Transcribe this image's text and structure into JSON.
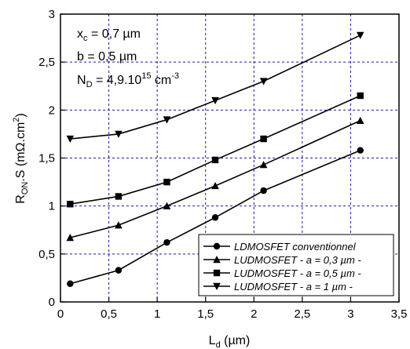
{
  "chart_data": {
    "type": "line",
    "xlabel_main": "L",
    "xlabel_sub": "d",
    "xlabel_rest": " (µm)",
    "ylabel_main": "R",
    "ylabel_sub": "ON",
    "ylabel_rest": ".S (mΩ.cm",
    "ylabel_sup": "2",
    "ylabel_close": ")",
    "xlim": [
      0,
      3.5
    ],
    "ylim": [
      0,
      3
    ],
    "xticks": [
      0,
      0.5,
      1,
      1.5,
      2,
      2.5,
      3,
      3.5
    ],
    "xtick_labels": [
      "0",
      "0,5",
      "1",
      "1,5",
      "2",
      "2,5",
      "3",
      "3,5"
    ],
    "yticks": [
      0,
      0.5,
      1,
      1.5,
      2,
      2.5,
      3
    ],
    "ytick_labels": [
      "0",
      "0,5",
      "1",
      "1,5",
      "2",
      "2,5",
      "3"
    ],
    "grid": true,
    "legend_position": "bottom-right",
    "annotations": {
      "xc_main": "x",
      "xc_sub": "c",
      "xc_rest": " = 0,7 µm",
      "b": "b = 0,5 µm",
      "nd_main": "N",
      "nd_sub": "D",
      "nd_rest": " = 4,9.10",
      "nd_sup": "15",
      "nd_unit": " cm",
      "nd_unit_sup": "-3"
    },
    "x": [
      0.1,
      0.6,
      1.1,
      1.6,
      2.1,
      3.1
    ],
    "series": [
      {
        "name": "LDMOSFET conventionnel",
        "marker": "circle",
        "values": [
          0.19,
          0.33,
          0.62,
          0.88,
          1.16,
          1.58
        ]
      },
      {
        "name": "LUDMOSFET - a = 0,3 µm -",
        "marker": "triangle-up",
        "values": [
          0.67,
          0.8,
          1.0,
          1.21,
          1.43,
          1.89
        ]
      },
      {
        "name": "LUDMOSFET - a = 0,5 µm -",
        "marker": "square",
        "values": [
          1.02,
          1.1,
          1.25,
          1.48,
          1.7,
          2.15
        ]
      },
      {
        "name": "LUDMOSFET - a = 1 µm -",
        "marker": "triangle-down",
        "values": [
          1.7,
          1.75,
          1.9,
          2.1,
          2.3,
          2.78
        ]
      }
    ]
  }
}
